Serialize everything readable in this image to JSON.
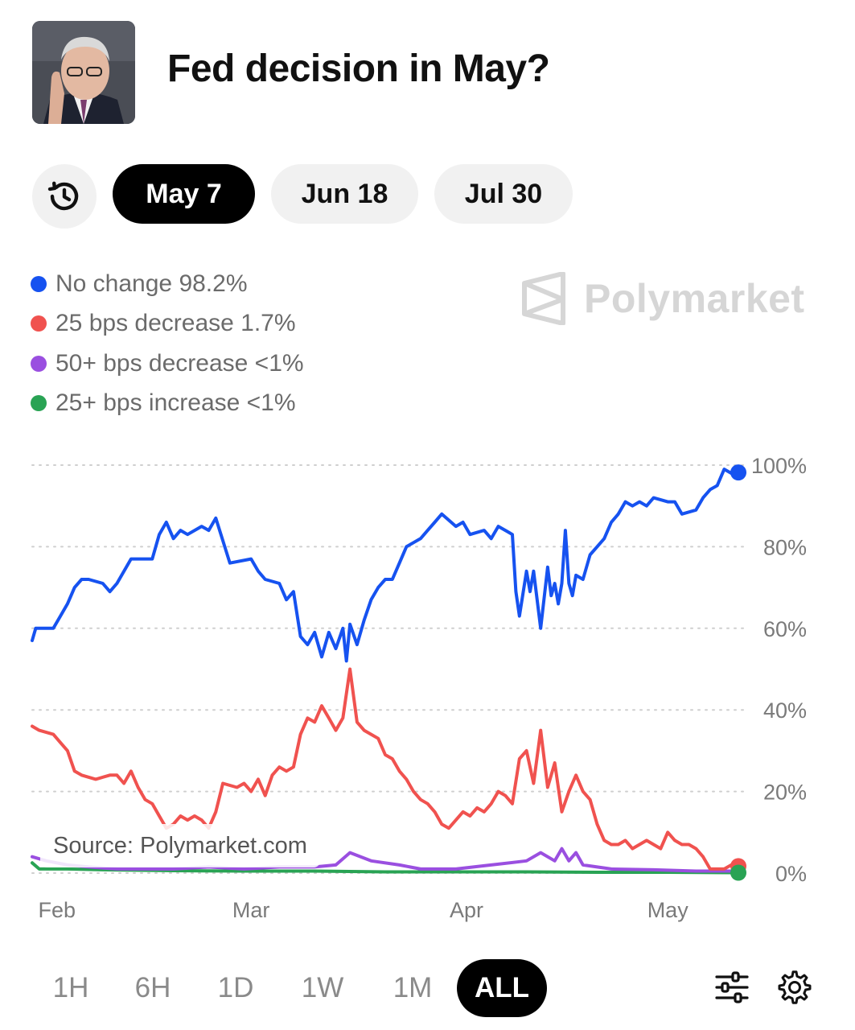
{
  "header": {
    "title": "Fed decision in May?"
  },
  "date_tabs": [
    {
      "label": "May 7",
      "active": true
    },
    {
      "label": "Jun 18",
      "active": false
    },
    {
      "label": "Jul 30",
      "active": false
    }
  ],
  "brand": {
    "name": "Polymarket"
  },
  "source": "Source: Polymarket.com",
  "time_ranges": [
    {
      "label": "1H",
      "active": false
    },
    {
      "label": "6H",
      "active": false
    },
    {
      "label": "1D",
      "active": false
    },
    {
      "label": "1W",
      "active": false
    },
    {
      "label": "1M",
      "active": false
    },
    {
      "label": "ALL",
      "active": true
    }
  ],
  "colors": {
    "accent": "#000000",
    "background": "#ffffff"
  },
  "chart_data": {
    "type": "line",
    "title": "Fed decision in May?",
    "y_ticks": [
      "100%",
      "80%",
      "60%",
      "40%",
      "20%",
      "0%"
    ],
    "ylim": [
      0,
      100
    ],
    "x_ticks": [
      {
        "label": "Feb",
        "x": 3.5
      },
      {
        "label": "Mar",
        "x": 31
      },
      {
        "label": "Apr",
        "x": 61.5
      },
      {
        "label": "May",
        "x": 90
      }
    ],
    "xlim": [
      0,
      100
    ],
    "series": [
      {
        "name": "No change",
        "legend": "No change 98.2%",
        "color": "#1652f0",
        "points": [
          [
            0,
            57
          ],
          [
            0.5,
            60
          ],
          [
            3,
            60
          ],
          [
            4,
            63
          ],
          [
            5,
            66
          ],
          [
            6,
            70
          ],
          [
            7,
            72
          ],
          [
            8,
            72
          ],
          [
            10,
            71
          ],
          [
            11,
            69
          ],
          [
            12,
            71
          ],
          [
            14,
            77
          ],
          [
            17,
            77
          ],
          [
            18,
            83
          ],
          [
            19,
            86
          ],
          [
            20,
            82
          ],
          [
            21,
            84
          ],
          [
            22,
            83
          ],
          [
            24,
            85
          ],
          [
            25,
            84
          ],
          [
            26,
            87
          ],
          [
            28,
            76
          ],
          [
            31,
            77
          ],
          [
            32,
            74
          ],
          [
            33,
            72
          ],
          [
            35,
            71
          ],
          [
            36,
            67
          ],
          [
            37,
            69
          ],
          [
            38,
            58
          ],
          [
            39,
            56
          ],
          [
            40,
            59
          ],
          [
            41,
            53
          ],
          [
            42,
            59
          ],
          [
            43,
            55
          ],
          [
            44,
            60
          ],
          [
            44.5,
            52
          ],
          [
            45,
            61
          ],
          [
            46,
            56
          ],
          [
            47,
            62
          ],
          [
            48,
            67
          ],
          [
            49,
            70
          ],
          [
            50,
            72
          ],
          [
            51,
            72
          ],
          [
            52,
            76
          ],
          [
            53,
            80
          ],
          [
            54,
            81
          ],
          [
            55,
            82
          ],
          [
            56,
            84
          ],
          [
            57,
            86
          ],
          [
            58,
            88
          ],
          [
            60,
            85
          ],
          [
            61,
            86
          ],
          [
            62,
            83
          ],
          [
            64,
            84
          ],
          [
            65,
            82
          ],
          [
            66,
            85
          ],
          [
            67,
            84
          ],
          [
            68,
            83
          ],
          [
            68.5,
            69
          ],
          [
            69,
            63
          ],
          [
            70,
            74
          ],
          [
            70.5,
            69
          ],
          [
            71,
            74
          ],
          [
            72,
            60
          ],
          [
            73,
            75
          ],
          [
            73.5,
            68
          ],
          [
            74,
            71
          ],
          [
            74.5,
            66
          ],
          [
            75,
            71
          ],
          [
            75.5,
            84
          ],
          [
            76,
            71
          ],
          [
            76.5,
            68
          ],
          [
            77,
            73
          ],
          [
            78,
            72
          ],
          [
            79,
            78
          ],
          [
            80,
            80
          ],
          [
            81,
            82
          ],
          [
            82,
            86
          ],
          [
            83,
            88
          ],
          [
            84,
            91
          ],
          [
            85,
            90
          ],
          [
            86,
            91
          ],
          [
            87,
            90
          ],
          [
            88,
            92
          ],
          [
            90,
            91
          ],
          [
            91,
            91
          ],
          [
            92,
            88
          ],
          [
            94,
            89
          ],
          [
            95,
            92
          ],
          [
            96,
            94
          ],
          [
            97,
            95
          ],
          [
            98,
            99
          ],
          [
            99,
            98
          ],
          [
            100,
            98.2
          ]
        ]
      },
      {
        "name": "25 bps decrease",
        "legend": "25 bps decrease 1.7%",
        "color": "#f0524f",
        "points": [
          [
            0,
            36
          ],
          [
            1,
            35
          ],
          [
            3,
            34
          ],
          [
            4,
            32
          ],
          [
            5,
            30
          ],
          [
            6,
            25
          ],
          [
            7,
            24
          ],
          [
            9,
            23
          ],
          [
            11,
            24
          ],
          [
            12,
            24
          ],
          [
            13,
            22
          ],
          [
            14,
            25
          ],
          [
            15,
            21
          ],
          [
            16,
            18
          ],
          [
            17,
            17
          ],
          [
            18,
            14
          ],
          [
            19,
            11
          ],
          [
            20,
            12
          ],
          [
            21,
            14
          ],
          [
            22,
            13
          ],
          [
            23,
            14
          ],
          [
            24,
            13
          ],
          [
            25,
            11
          ],
          [
            26,
            15
          ],
          [
            27,
            22
          ],
          [
            29,
            21
          ],
          [
            30,
            22
          ],
          [
            31,
            20
          ],
          [
            32,
            23
          ],
          [
            33,
            19
          ],
          [
            34,
            24
          ],
          [
            35,
            26
          ],
          [
            36,
            25
          ],
          [
            37,
            26
          ],
          [
            38,
            34
          ],
          [
            39,
            38
          ],
          [
            40,
            37
          ],
          [
            41,
            41
          ],
          [
            42,
            38
          ],
          [
            43,
            35
          ],
          [
            44,
            38
          ],
          [
            45,
            50
          ],
          [
            46,
            37
          ],
          [
            47,
            35
          ],
          [
            48,
            34
          ],
          [
            49,
            33
          ],
          [
            50,
            29
          ],
          [
            51,
            28
          ],
          [
            52,
            25
          ],
          [
            53,
            23
          ],
          [
            54,
            20
          ],
          [
            55,
            18
          ],
          [
            56,
            17
          ],
          [
            57,
            15
          ],
          [
            58,
            12
          ],
          [
            59,
            11
          ],
          [
            60,
            13
          ],
          [
            61,
            15
          ],
          [
            62,
            14
          ],
          [
            63,
            16
          ],
          [
            64,
            15
          ],
          [
            65,
            17
          ],
          [
            66,
            20
          ],
          [
            67,
            19
          ],
          [
            68,
            17
          ],
          [
            69,
            28
          ],
          [
            70,
            30
          ],
          [
            71,
            22
          ],
          [
            72,
            35
          ],
          [
            73,
            21
          ],
          [
            74,
            27
          ],
          [
            75,
            15
          ],
          [
            76,
            20
          ],
          [
            77,
            24
          ],
          [
            78,
            20
          ],
          [
            79,
            18
          ],
          [
            80,
            12
          ],
          [
            81,
            8
          ],
          [
            82,
            7
          ],
          [
            83,
            7
          ],
          [
            84,
            8
          ],
          [
            85,
            6
          ],
          [
            86,
            7
          ],
          [
            87,
            8
          ],
          [
            88,
            7
          ],
          [
            89,
            6
          ],
          [
            90,
            10
          ],
          [
            91,
            8
          ],
          [
            92,
            7
          ],
          [
            93,
            7
          ],
          [
            94,
            6
          ],
          [
            95,
            4
          ],
          [
            96,
            1
          ],
          [
            97,
            1
          ],
          [
            98,
            1
          ],
          [
            99,
            2
          ],
          [
            100,
            1.7
          ]
        ]
      },
      {
        "name": "50+ bps decrease",
        "legend": "50+ bps decrease <1%",
        "color": "#9a4fe0",
        "points": [
          [
            0,
            4
          ],
          [
            2,
            3
          ],
          [
            5,
            2
          ],
          [
            8,
            1.5
          ],
          [
            12,
            1
          ],
          [
            20,
            1
          ],
          [
            25,
            1.5
          ],
          [
            30,
            1
          ],
          [
            35,
            1.5
          ],
          [
            40,
            1.5
          ],
          [
            43,
            2
          ],
          [
            45,
            5
          ],
          [
            48,
            3
          ],
          [
            52,
            2
          ],
          [
            55,
            1
          ],
          [
            60,
            1
          ],
          [
            65,
            2
          ],
          [
            70,
            3
          ],
          [
            72,
            5
          ],
          [
            74,
            3
          ],
          [
            75,
            6
          ],
          [
            76,
            3
          ],
          [
            77,
            5
          ],
          [
            78,
            2
          ],
          [
            82,
            1
          ],
          [
            88,
            0.8
          ],
          [
            94,
            0.5
          ],
          [
            100,
            0.5
          ]
        ]
      },
      {
        "name": "25+ bps increase",
        "legend": "25+ bps increase <1%",
        "color": "#29a354",
        "points": [
          [
            0,
            2.5
          ],
          [
            1,
            1
          ],
          [
            5,
            1
          ],
          [
            10,
            0.8
          ],
          [
            20,
            0.6
          ],
          [
            30,
            0.5
          ],
          [
            40,
            0.5
          ],
          [
            50,
            0.3
          ],
          [
            60,
            0.3
          ],
          [
            70,
            0.3
          ],
          [
            80,
            0.2
          ],
          [
            90,
            0.2
          ],
          [
            100,
            0.1
          ]
        ]
      }
    ]
  }
}
